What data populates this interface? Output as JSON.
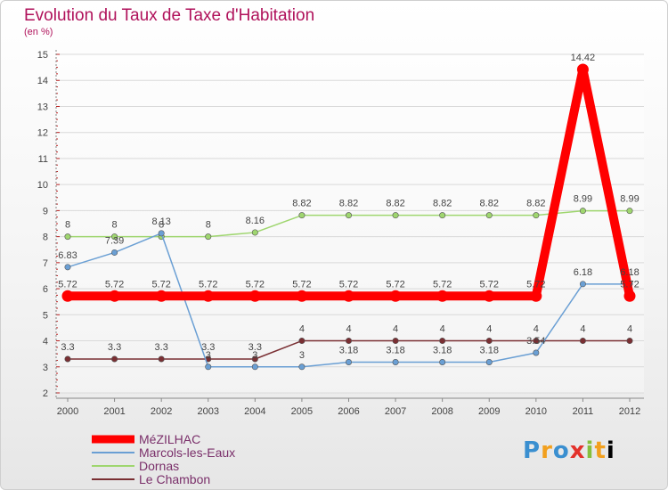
{
  "chart_data": {
    "type": "line",
    "title": "Evolution du Taux de Taxe d'Habitation",
    "subtitle": "(en %)",
    "x": [
      "2000",
      "2001",
      "2002",
      "2003",
      "2004",
      "2005",
      "2006",
      "2007",
      "2008",
      "2009",
      "2010",
      "2011",
      "2012"
    ],
    "ylim": [
      2,
      15
    ],
    "yticks": [
      "2",
      "3",
      "4",
      "5",
      "6",
      "7",
      "8",
      "9",
      "10",
      "11",
      "12",
      "13",
      "14",
      "15"
    ],
    "grid": "horizontal",
    "legend_position": "bottom-left",
    "series": [
      {
        "name": "MéZILHAC",
        "color": "#ff0000",
        "values": [
          5.72,
          5.72,
          5.72,
          5.72,
          5.72,
          5.72,
          5.72,
          5.72,
          5.72,
          5.72,
          5.72,
          14.42,
          5.72
        ],
        "labels": [
          "5.72",
          "5.72",
          "5.72",
          "5.72",
          "5.72",
          "5.72",
          "5.72",
          "5.72",
          "5.72",
          "5.72",
          "5.72",
          "14.42",
          "5.72"
        ]
      },
      {
        "name": "Marcols-les-Eaux",
        "color": "#6a9fd4",
        "values": [
          6.83,
          7.39,
          8.13,
          3,
          3,
          3,
          3.18,
          3.18,
          3.18,
          3.18,
          3.54,
          6.18,
          6.18
        ],
        "labels": [
          "6.83",
          "7.39",
          "8.13",
          "3",
          "3",
          "3",
          "3.18",
          "3.18",
          "3.18",
          "3.18",
          "3.54",
          "6.18",
          "6.18"
        ]
      },
      {
        "name": "Dornas",
        "color": "#9fd66f",
        "values": [
          8,
          8,
          8,
          8,
          8.16,
          8.82,
          8.82,
          8.82,
          8.82,
          8.82,
          8.82,
          8.99,
          8.99
        ],
        "labels": [
          "8",
          "8",
          "8",
          "8",
          "8.16",
          "8.82",
          "8.82",
          "8.82",
          "8.82",
          "8.82",
          "8.82",
          "8.99",
          "8.99"
        ]
      },
      {
        "name": "Le Chambon",
        "color": "#7a2f33",
        "values": [
          3.3,
          3.3,
          3.3,
          3.3,
          3.3,
          4,
          4,
          4,
          4,
          4,
          4,
          4,
          4
        ],
        "labels": [
          "3.3",
          "3.3",
          "3.3",
          "3.3",
          "3.3",
          "4",
          "4",
          "4",
          "4",
          "4",
          "4",
          "4",
          "4"
        ]
      }
    ]
  },
  "logo": {
    "text": "Proxiti",
    "letters": [
      "P",
      "r",
      "o",
      "x",
      "i",
      "t",
      "i"
    ]
  }
}
